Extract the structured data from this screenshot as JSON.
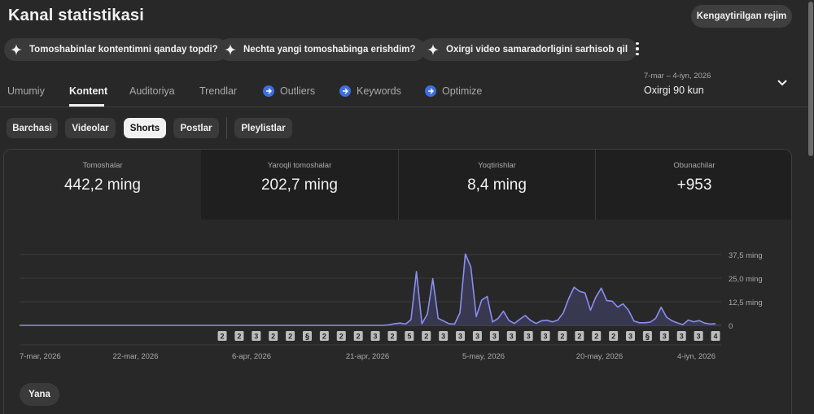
{
  "header": {
    "title": "Kanal statistikasi",
    "advanced_mode_label": "Kengaytirilgan rejim"
  },
  "suggestions": [
    {
      "label": "Tomoshabinlar kontentimni qanday topdi?",
      "icon": "sparkle-icon"
    },
    {
      "label": "Nechta yangi tomoshabinga erishdim?",
      "icon": "sparkle-icon"
    },
    {
      "label": "Oxirgi video samaradorligini sarhisob qil",
      "icon": "sparkle-icon"
    }
  ],
  "tabs": [
    {
      "label": "Umumiy",
      "active": false
    },
    {
      "label": "Kontent",
      "active": true
    },
    {
      "label": "Auditoriya",
      "active": false
    },
    {
      "label": "Trendlar",
      "active": false
    },
    {
      "label": "Outliers",
      "active": false,
      "icon": "extension-icon"
    },
    {
      "label": "Keywords",
      "active": false,
      "icon": "extension-icon"
    },
    {
      "label": "Optimize",
      "active": false,
      "icon": "extension-icon"
    }
  ],
  "date_range": {
    "dates": "7-mar – 4-iyn, 2026",
    "period": "Oxirgi 90 kun"
  },
  "filters": [
    {
      "label": "Barchasi",
      "active": false
    },
    {
      "label": "Videolar",
      "active": false
    },
    {
      "label": "Shorts",
      "active": true
    },
    {
      "label": "Postlar",
      "active": false
    },
    {
      "label": "Pleylistlar",
      "active": false
    }
  ],
  "metrics": [
    {
      "label": "Tomoshalar",
      "value": "442,2 ming",
      "active": true
    },
    {
      "label": "Yaroqli tomoshalar",
      "value": "202,7 ming",
      "active": false
    },
    {
      "label": "Yoqtirishlar",
      "value": "8,4 ming",
      "active": false
    },
    {
      "label": "Obunachilar",
      "value": "+953",
      "active": false
    }
  ],
  "more_label": "Yana",
  "colors": {
    "accent": "#8c8ef0",
    "background": "#282828",
    "extension": "#3d6fe0"
  },
  "chart_data": {
    "type": "area",
    "series": [
      {
        "values": [
          0,
          0,
          0,
          0,
          0,
          0,
          0,
          0,
          0,
          0,
          0,
          0,
          0,
          0,
          0,
          0,
          0,
          0,
          0,
          0,
          0,
          0,
          0,
          0,
          0,
          0,
          0,
          0,
          0,
          0,
          0,
          0,
          0,
          0,
          0,
          0,
          0,
          0,
          0,
          0,
          0,
          0,
          0,
          0,
          0,
          0,
          0,
          0,
          0,
          0,
          0,
          0,
          0,
          0,
          0,
          0,
          0,
          0,
          0,
          0,
          0,
          0,
          0,
          0,
          0,
          0,
          0,
          0,
          300,
          900,
          1200,
          700,
          3000,
          28500,
          800,
          6000,
          24700,
          3700,
          2300,
          800,
          700,
          6700,
          37800,
          31000,
          4600,
          13400,
          15300,
          1800,
          3600,
          7500,
          2600,
          1000,
          3200,
          5200,
          2600,
          1000,
          2400,
          2700,
          1800,
          2800,
          6600,
          14200,
          20200,
          18000,
          17200,
          8000,
          15000,
          19700,
          13100,
          12800,
          9700,
          11400,
          8000,
          2300,
          1400,
          1400,
          1700,
          3700,
          9600,
          4300,
          2400,
          1300,
          400,
          2800,
          1900,
          2500,
          1200,
          700,
          900
        ]
      }
    ],
    "x_ticks": [
      "7-mar, 2026",
      "22-mar, 2026",
      "6-apr, 2026",
      "21-apr, 2026",
      "5-may, 2026",
      "20-may, 2026",
      "4-iyn, 2026"
    ],
    "y_ticks": [
      "0",
      "12,5 ming",
      "25,0 ming",
      "37,5 ming"
    ],
    "ylim": [
      0,
      37500
    ],
    "markers": [
      "2",
      "2",
      "3",
      "2",
      "2",
      "2",
      "2",
      "2",
      "2",
      "3",
      "2",
      "5",
      "2",
      "3",
      "3",
      "3",
      "3",
      "3",
      "3",
      "3",
      "2",
      "2",
      "2",
      "2",
      "3",
      "2",
      "3",
      "3",
      "3",
      "4"
    ],
    "marker_icons": [
      false,
      false,
      false,
      false,
      false,
      true,
      false,
      false,
      false,
      false,
      false,
      false,
      false,
      false,
      false,
      false,
      false,
      false,
      false,
      false,
      false,
      false,
      false,
      false,
      false,
      true,
      false,
      false,
      false,
      false
    ],
    "grid": true,
    "legend": "none"
  }
}
